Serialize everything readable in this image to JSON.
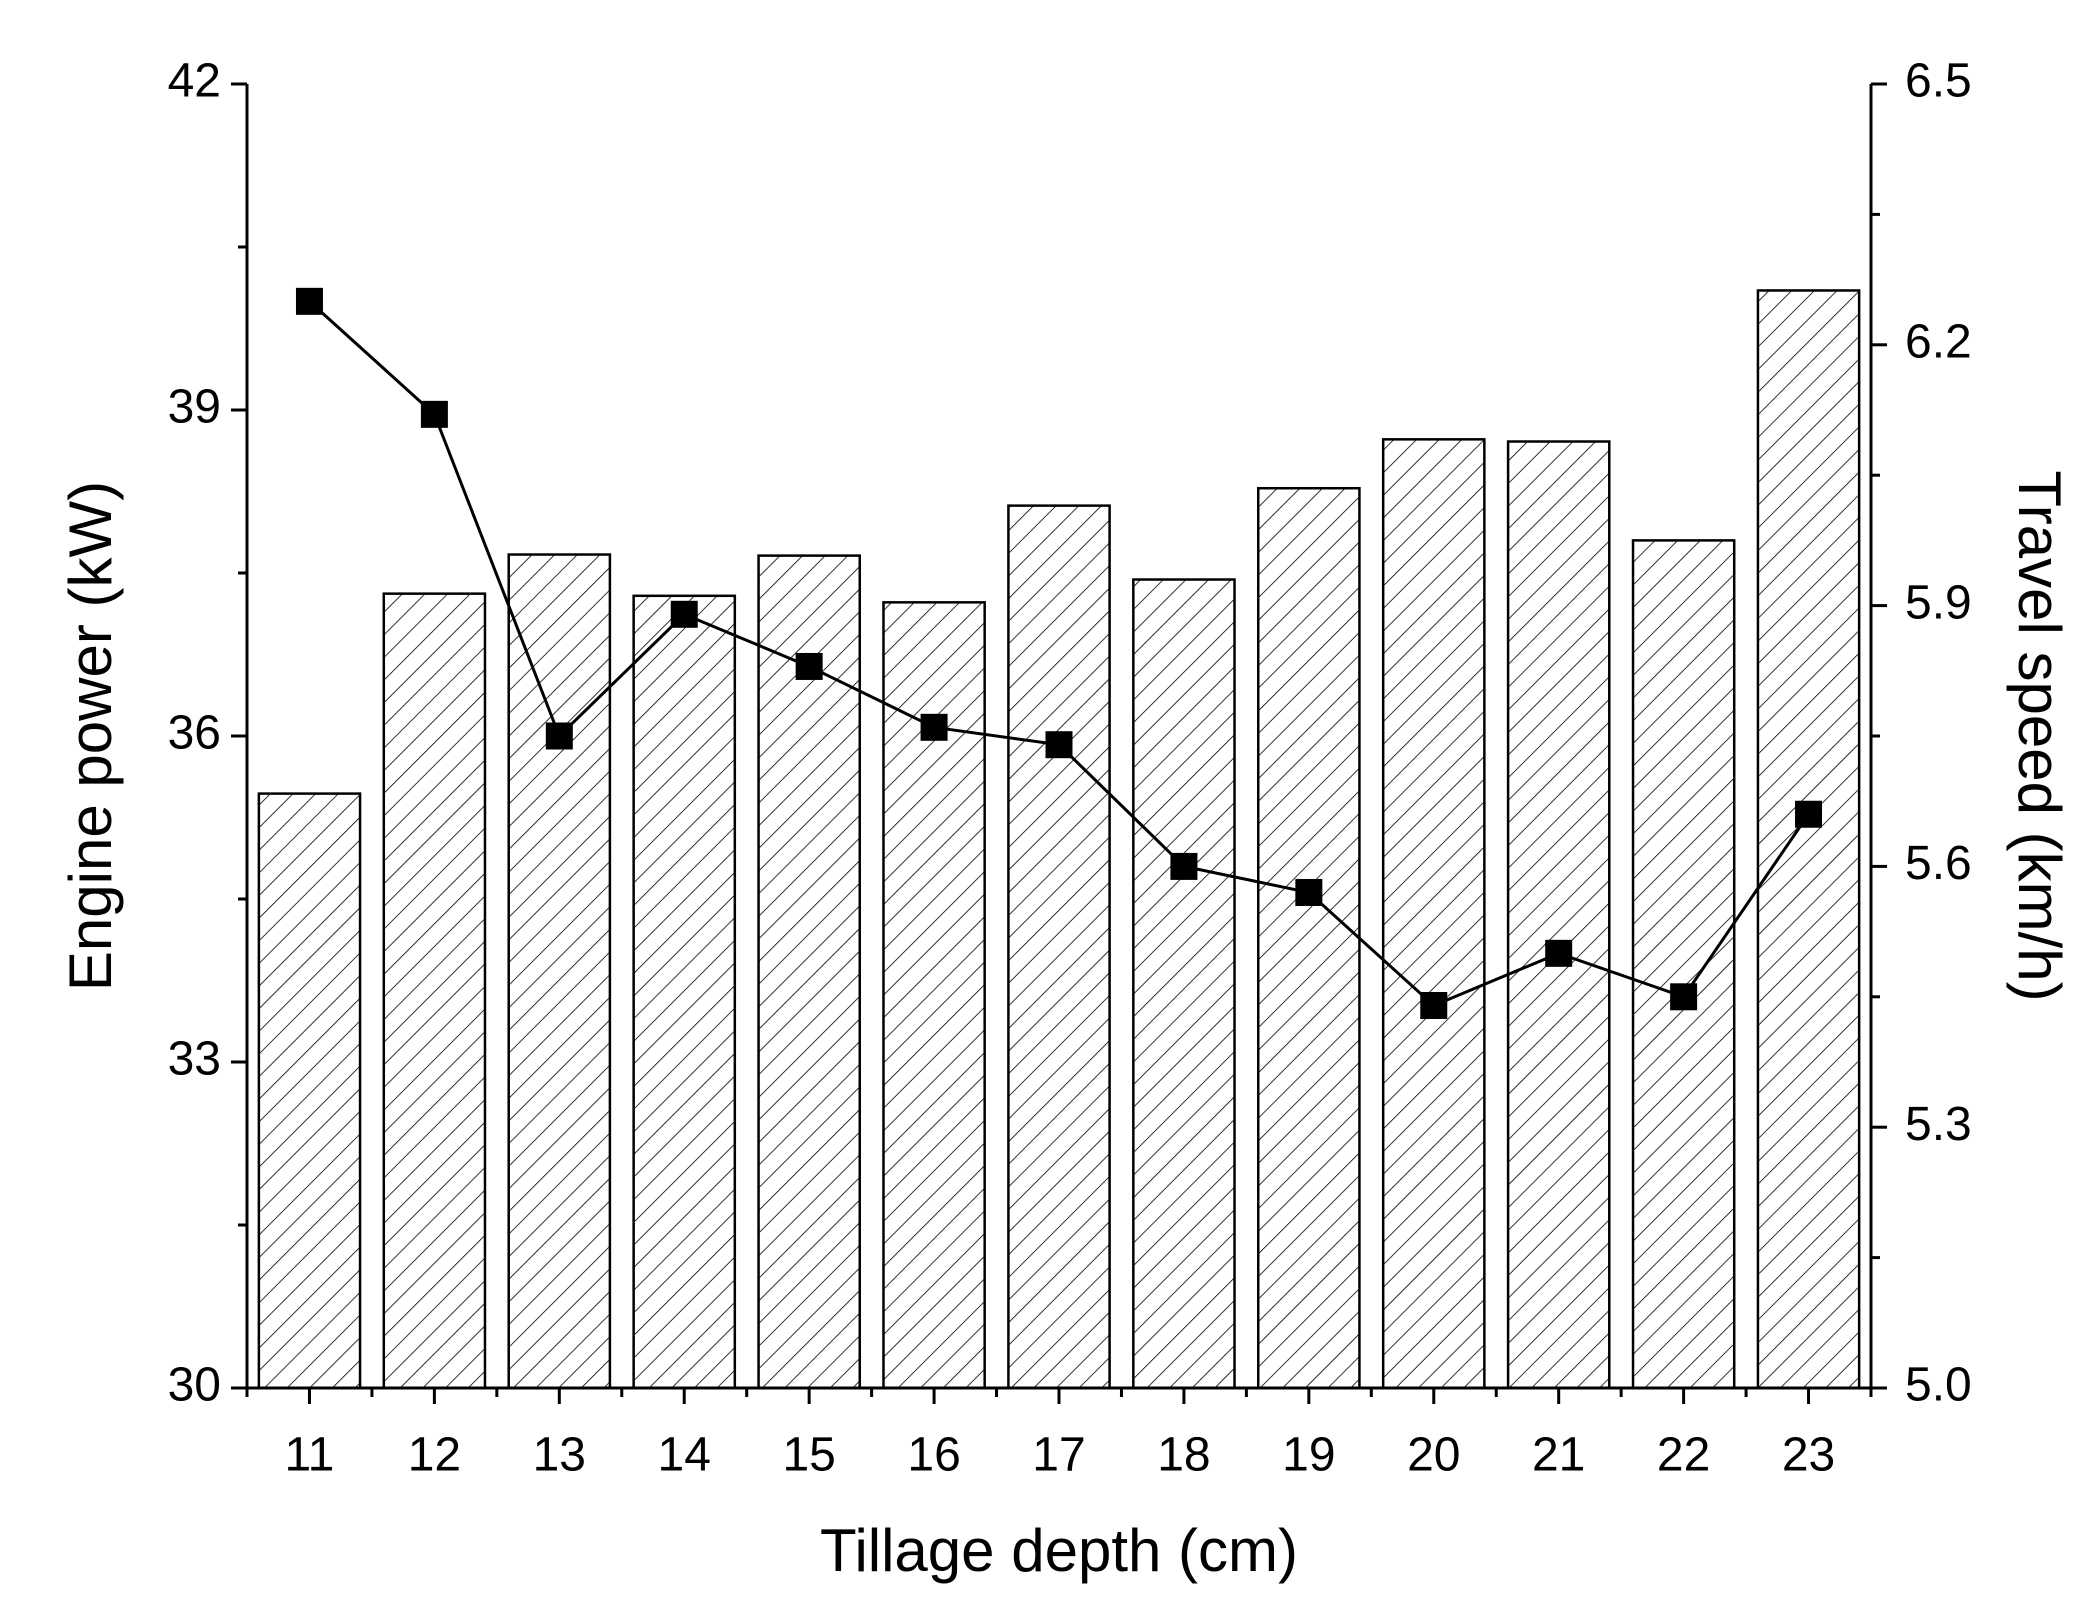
{
  "chart_data": {
    "type": "bar",
    "x_label": "Tillage depth (cm)",
    "y_label": "Engine power (kW)",
    "y2_label": "Travel speed (km/h)",
    "categories": [
      "11",
      "12",
      "13",
      "14",
      "15",
      "16",
      "17",
      "18",
      "19",
      "20",
      "21",
      "22",
      "23"
    ],
    "series": [
      {
        "type": "bar",
        "color": "#000000",
        "hatch": true,
        "values": [
          35.47,
          37.31,
          37.67,
          37.29,
          37.66,
          37.23,
          38.12,
          37.44,
          38.28,
          38.73,
          38.71,
          37.8,
          40.1
        ]
      },
      {
        "type": "line",
        "axis": "y2",
        "color": "#000000",
        "marker": "square",
        "values": [
          6.25,
          6.12,
          5.75,
          5.89,
          5.83,
          5.76,
          5.74,
          5.6,
          5.57,
          5.44,
          5.5,
          5.45,
          5.66
        ]
      }
    ],
    "ylim": [
      30,
      42
    ],
    "yticks": [
      30,
      33,
      36,
      39,
      42
    ],
    "y2lim": [
      5,
      6.5
    ],
    "y2ticks": [
      {
        "value": 5,
        "label": "5.0"
      },
      5.3,
      5.6,
      5.9,
      6.2,
      6.5
    ],
    "grid": false
  }
}
